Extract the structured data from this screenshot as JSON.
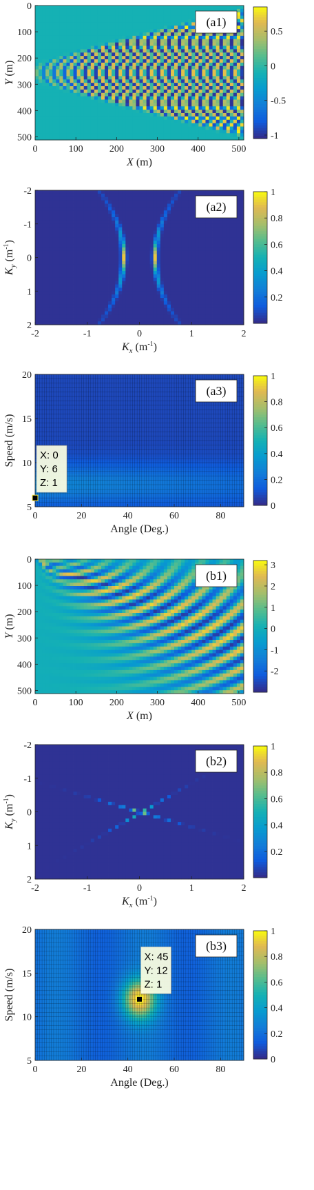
{
  "chart_data": [
    {
      "id": "a1",
      "type": "heatmap",
      "label": "(a1)",
      "xlabel": "X",
      "xunit": "(m)",
      "ylabel": "Y",
      "yunit": "(m)",
      "xlim": [
        0,
        512
      ],
      "ylim": [
        0,
        512
      ],
      "y_reversed": true,
      "xticks": [
        0,
        100,
        200,
        300,
        400,
        500
      ],
      "yticks": [
        0,
        100,
        200,
        300,
        400,
        500
      ],
      "colorbar": {
        "range": [
          -1.05,
          0.85
        ],
        "ticks": [
          0.5,
          0,
          -0.5,
          -1
        ],
        "tick_labels": [
          "0.5",
          "0",
          "-0.5",
          "-1"
        ]
      },
      "pattern": "kelvin-transverse",
      "source_y": 256,
      "spread": 0.45
    },
    {
      "id": "a2",
      "type": "heatmap",
      "label": "(a2)",
      "xlabel": "K",
      "xsub": "x",
      "xunit": "(m",
      "ylabel": "K",
      "ysub": "y",
      "yunit": "(m",
      "unit_exp": "-1",
      "xlim": [
        -2,
        2
      ],
      "ylim": [
        -2,
        2
      ],
      "y_reversed": true,
      "xticks": [
        -2,
        -1,
        0,
        1,
        2
      ],
      "yticks": [
        -2,
        -1,
        0,
        1,
        2
      ],
      "colorbar": {
        "range": [
          0,
          1
        ],
        "ticks": [
          1,
          0.8,
          0.6,
          0.4,
          0.2
        ],
        "tick_labels": [
          "1",
          "0.8",
          "0.6",
          "0.4",
          "0.2"
        ]
      },
      "pattern": "spectrum-transverse"
    },
    {
      "id": "a3",
      "type": "heatmap",
      "label": "(a3)",
      "xlabel": "Angle (Deg.)",
      "ylabel": "Speed (m/s)",
      "xlim": [
        0,
        90
      ],
      "ylim": [
        5,
        20
      ],
      "xticks": [
        0,
        20,
        40,
        60,
        80
      ],
      "yticks": [
        5,
        10,
        15,
        20
      ],
      "colorbar": {
        "range": [
          0,
          1
        ],
        "ticks": [
          1,
          0.8,
          0.6,
          0.4,
          0.2,
          0
        ],
        "tick_labels": [
          "1",
          "0.8",
          "0.6",
          "0.4",
          "0.2",
          "0"
        ]
      },
      "pattern": "search-low",
      "datatip": {
        "x": 0,
        "y": 6,
        "z": 1,
        "lines": [
          "X: 0",
          "Y: 6",
          "Z: 1"
        ]
      }
    },
    {
      "id": "b1",
      "type": "heatmap",
      "label": "(b1)",
      "xlabel": "X",
      "xunit": "(m)",
      "ylabel": "Y",
      "yunit": "(m)",
      "xlim": [
        0,
        512
      ],
      "ylim": [
        0,
        512
      ],
      "y_reversed": true,
      "xticks": [
        0,
        100,
        200,
        300,
        400,
        500
      ],
      "yticks": [
        0,
        100,
        200,
        300,
        400,
        500
      ],
      "colorbar": {
        "range": [
          -3,
          3.2
        ],
        "ticks": [
          3,
          2,
          1,
          0,
          -1,
          -2
        ],
        "tick_labels": [
          "3",
          "2",
          "1",
          "0",
          "-1",
          "-2"
        ]
      },
      "pattern": "kelvin-diverging"
    },
    {
      "id": "b2",
      "type": "heatmap",
      "label": "(b2)",
      "xlabel": "K",
      "xsub": "x",
      "xunit": "(m",
      "ylabel": "K",
      "ysub": "y",
      "yunit": "(m",
      "unit_exp": "-1",
      "xlim": [
        -2,
        2
      ],
      "ylim": [
        -2,
        2
      ],
      "y_reversed": true,
      "xticks": [
        -2,
        -1,
        0,
        1,
        2
      ],
      "yticks": [
        -2,
        -1,
        0,
        1,
        2
      ],
      "colorbar": {
        "range": [
          0,
          1
        ],
        "ticks": [
          1,
          0.8,
          0.6,
          0.4,
          0.2
        ],
        "tick_labels": [
          "1",
          "0.8",
          "0.6",
          "0.4",
          "0.2"
        ]
      },
      "pattern": "spectrum-diverging"
    },
    {
      "id": "b3",
      "type": "heatmap",
      "label": "(b3)",
      "xlabel": "Angle (Deg.)",
      "ylabel": "Speed (m/s)",
      "xlim": [
        0,
        90
      ],
      "ylim": [
        5,
        20
      ],
      "xticks": [
        0,
        20,
        40,
        60,
        80
      ],
      "yticks": [
        5,
        10,
        15,
        20
      ],
      "colorbar": {
        "range": [
          0,
          1
        ],
        "ticks": [
          1,
          0.8,
          0.6,
          0.4,
          0.2,
          0
        ],
        "tick_labels": [
          "1",
          "0.8",
          "0.6",
          "0.4",
          "0.2",
          "0"
        ]
      },
      "pattern": "search-peak",
      "datatip": {
        "x": 45,
        "y": 12,
        "z": 1,
        "lines": [
          "X: 45",
          "Y: 12",
          "Z: 1"
        ]
      }
    }
  ]
}
